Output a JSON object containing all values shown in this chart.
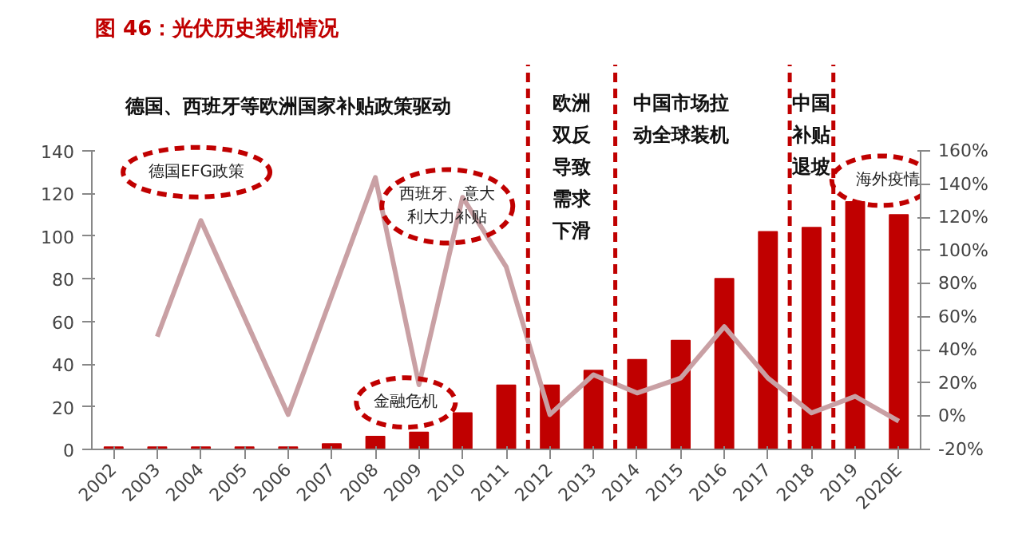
{
  "chart_data": {
    "type": "bar",
    "title": "图 46：光伏历史装机情况",
    "categories": [
      "2002",
      "2003",
      "2004",
      "2005",
      "2006",
      "2007",
      "2008",
      "2009",
      "2010",
      "2011",
      "2012",
      "2013",
      "2014",
      "2015",
      "2016",
      "2017",
      "2018",
      "2019",
      "2020E"
    ],
    "series": [
      {
        "color": "#c00000",
        "values": [
          1,
          1,
          1,
          1,
          1,
          2.5,
          6,
          8,
          17,
          30,
          30,
          37,
          42,
          51,
          80,
          102,
          104,
          116,
          110
        ]
      },
      {
        "type": "line",
        "axis": "y2",
        "color": "#c9a0a4",
        "values": [
          null,
          48,
          118,
          null,
          1,
          null,
          144,
          19,
          132,
          90,
          1,
          25,
          14,
          23,
          54,
          23,
          2,
          12,
          -3
        ]
      }
    ],
    "ylim": [
      0,
      140
    ],
    "yticks": [
      0,
      20,
      40,
      60,
      80,
      100,
      120,
      140
    ],
    "y2lim": [
      -20,
      160
    ],
    "y2ticks": [
      {
        "value": -20,
        "label": "-20%"
      },
      {
        "value": 0,
        "label": "0%"
      },
      {
        "value": 20,
        "label": "20%"
      },
      {
        "value": 40,
        "label": "40%"
      },
      {
        "value": 60,
        "label": "60%"
      },
      {
        "value": 80,
        "label": "80%"
      },
      {
        "value": 100,
        "label": "100%"
      },
      {
        "value": 120,
        "label": "120%"
      },
      {
        "value": 140,
        "label": "140%"
      },
      {
        "value": 160,
        "label": "160%"
      }
    ],
    "annotations": [
      "德国、西班牙等欧洲国家补贴政策驱动",
      "欧洲双反导致需求下滑",
      "中国市场拉动全球装机",
      "中国补贴退坡",
      "德国EFG政策",
      "金融危机",
      "西班牙、意大利大力补贴",
      "海外疫情"
    ],
    "grid": false
  }
}
